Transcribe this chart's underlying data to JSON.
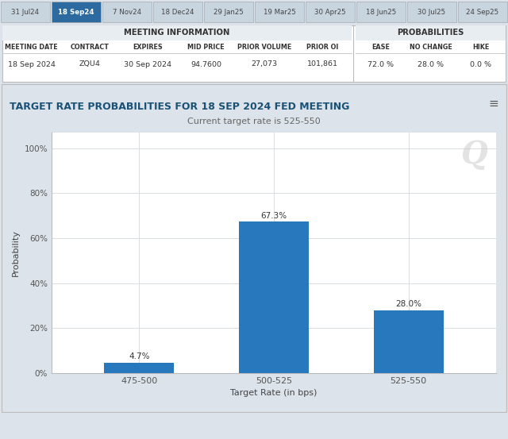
{
  "tab_dates": [
    "31 Jul24",
    "18 Sep24",
    "7 Nov24",
    "18 Dec24",
    "29 Jan25",
    "19 Mar25",
    "30 Apr25",
    "18 Jun25",
    "30 Jul25",
    "24 Sep25"
  ],
  "active_tab": "18 Sep24",
  "active_tab_color": "#2d6a9f",
  "inactive_tab_color": "#c8d4de",
  "active_tab_text_color": "#ffffff",
  "inactive_tab_text_color": "#444444",
  "meeting_info_header": "MEETING INFORMATION",
  "probabilities_header": "PROBABILITIES",
  "meeting_date": "18 Sep 2024",
  "contract": "ZQU4",
  "expires": "30 Sep 2024",
  "mid_price": "94.7600",
  "prior_volume": "27,073",
  "prior_oi": "101,861",
  "ease": "72.0 %",
  "no_change": "28.0 %",
  "hike": "0.0 %",
  "chart_title": "TARGET RATE PROBABILITIES FOR 18 SEP 2024 FED MEETING",
  "chart_subtitle": "Current target rate is 525-550",
  "categories": [
    "475-500",
    "500-525",
    "525-550"
  ],
  "values": [
    4.7,
    67.3,
    28.0
  ],
  "bar_color": "#2878be",
  "bar_labels": [
    "4.7%",
    "67.3%",
    "28.0%"
  ],
  "xlabel": "Target Rate (in bps)",
  "ylabel": "Probability",
  "yticks": [
    0,
    20,
    40,
    60,
    80,
    100
  ],
  "ytick_labels": [
    "0%",
    "20%",
    "40%",
    "60%",
    "80%",
    "100%"
  ],
  "ylim": [
    0,
    107
  ],
  "grid_color": "#d8dde2",
  "title_color": "#1a5276",
  "subtitle_color": "#666666",
  "outer_bg": "#dce3ea",
  "panel_bg": "#ffffff",
  "table_header_bg": "#e8edf2"
}
